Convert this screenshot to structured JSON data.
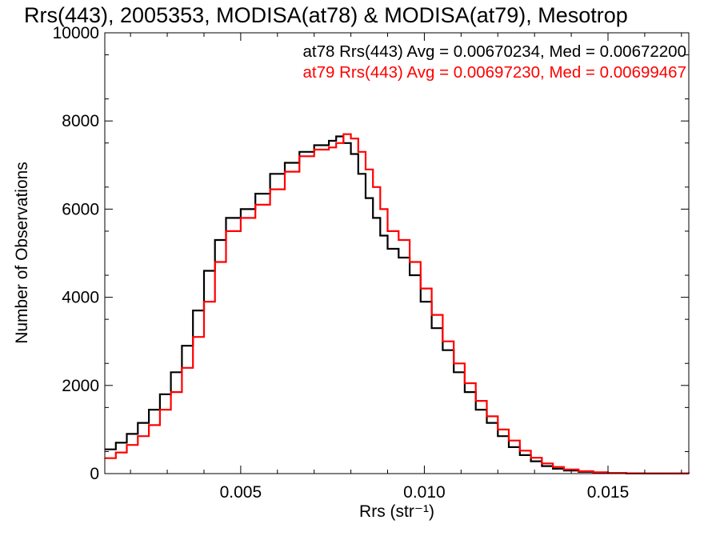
{
  "chart_data": {
    "type": "line",
    "step": true,
    "title": "Rrs(443), 2005353, MODISA(at78) & MODISA(at79), Mesotrop",
    "xlabel": "Rrs (str⁻¹)",
    "ylabel": "Number of Observations",
    "xlim": [
      0.0013,
      0.0172
    ],
    "ylim": [
      0,
      10000
    ],
    "x_ticks": [
      0.005,
      0.01,
      0.015
    ],
    "x_tick_labels": [
      "0.005",
      "0.010",
      "0.015"
    ],
    "y_ticks": [
      0,
      2000,
      4000,
      6000,
      8000,
      10000
    ],
    "y_tick_labels": [
      "0",
      "2000",
      "4000",
      "6000",
      "8000",
      "10000"
    ],
    "grid": false,
    "legend_position": "top-right",
    "x": [
      0.0013,
      0.0016,
      0.0019,
      0.0022,
      0.0025,
      0.0028,
      0.0031,
      0.0034,
      0.0037,
      0.004,
      0.0043,
      0.0046,
      0.005,
      0.0054,
      0.0058,
      0.0062,
      0.0066,
      0.007,
      0.0074,
      0.0076,
      0.0078,
      0.008,
      0.0082,
      0.0084,
      0.0086,
      0.0088,
      0.009,
      0.0093,
      0.0096,
      0.0099,
      0.0102,
      0.0105,
      0.0108,
      0.0111,
      0.0114,
      0.0117,
      0.012,
      0.0123,
      0.0126,
      0.0129,
      0.0132,
      0.0135,
      0.0138,
      0.0142,
      0.0146,
      0.015,
      0.0155,
      0.016,
      0.0166,
      0.0172
    ],
    "series": [
      {
        "name": "at78 Rrs(443) Avg = 0.00670234, Med = 0.00672200",
        "color": "#000000",
        "values": [
          550,
          700,
          900,
          1150,
          1450,
          1800,
          2300,
          2900,
          3700,
          4600,
          5300,
          5800,
          6000,
          6350,
          6800,
          7050,
          7300,
          7450,
          7550,
          7650,
          7500,
          7250,
          6800,
          6250,
          5800,
          5400,
          5100,
          4900,
          4500,
          3900,
          3300,
          2800,
          2300,
          1850,
          1450,
          1150,
          850,
          600,
          420,
          280,
          170,
          110,
          70,
          40,
          20,
          10,
          5,
          3,
          1,
          0
        ]
      },
      {
        "name": "at79 Rrs(443) Avg = 0.00697230, Med = 0.00699467",
        "color": "#ff0000",
        "values": [
          350,
          480,
          650,
          850,
          1100,
          1450,
          1850,
          2400,
          3100,
          3900,
          4800,
          5500,
          5800,
          6100,
          6450,
          6850,
          7200,
          7350,
          7400,
          7500,
          7700,
          7600,
          7300,
          6900,
          6500,
          6000,
          5500,
          5300,
          4800,
          4200,
          3600,
          3000,
          2500,
          2050,
          1650,
          1300,
          1000,
          750,
          520,
          360,
          230,
          150,
          95,
          55,
          30,
          15,
          8,
          4,
          2,
          0
        ]
      }
    ]
  }
}
